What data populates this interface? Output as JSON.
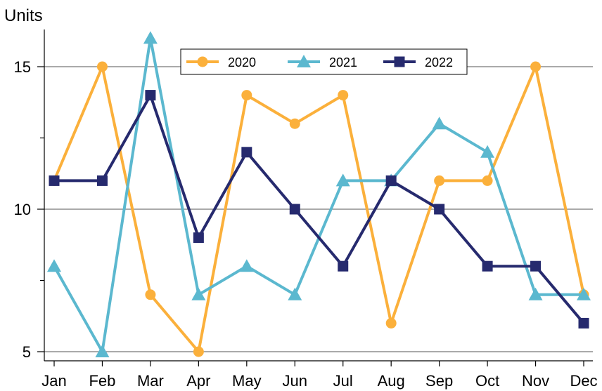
{
  "chart_data": {
    "type": "line",
    "title": "",
    "ylabel": "Units",
    "xlabel": "",
    "categories": [
      "Jan",
      "Feb",
      "Mar",
      "Apr",
      "May",
      "Jun",
      "Jul",
      "Aug",
      "Sep",
      "Oct",
      "Nov",
      "Dec"
    ],
    "ylim": [
      5,
      16
    ],
    "yticks": [
      "5",
      "10",
      "15"
    ],
    "grid": "horizontal at labeled ticks",
    "legend_position": "top-center",
    "series": [
      {
        "name": "2020",
        "color": "#FBB03B",
        "marker": "circle",
        "values": [
          11,
          15,
          7,
          5,
          14,
          13,
          14,
          6,
          11,
          11,
          15,
          7
        ]
      },
      {
        "name": "2021",
        "color": "#5BB8CF",
        "marker": "triangle",
        "values": [
          8,
          5,
          16,
          7,
          8,
          7,
          11,
          11,
          13,
          12,
          7,
          7
        ]
      },
      {
        "name": "2022",
        "color": "#262A6E",
        "marker": "square",
        "values": [
          11,
          11,
          14,
          9,
          12,
          10,
          8,
          11,
          10,
          8,
          8,
          6
        ]
      }
    ]
  }
}
